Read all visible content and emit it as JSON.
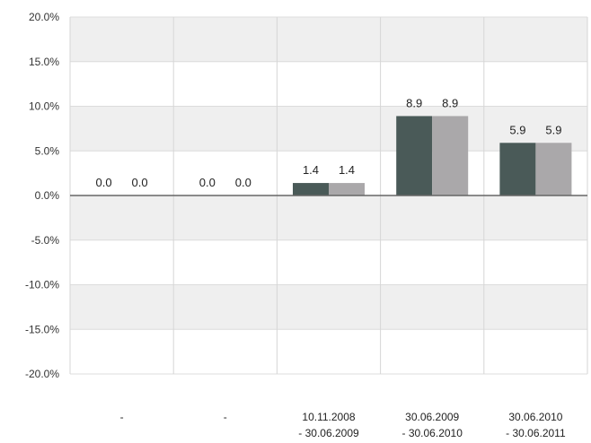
{
  "chart_data": {
    "type": "bar",
    "categories": [
      [
        "-"
      ],
      [
        "-"
      ],
      [
        "10.11.2008",
        "- 30.06.2009"
      ],
      [
        "30.06.2009",
        "- 30.06.2010"
      ],
      [
        "30.06.2010",
        "- 30.06.2011"
      ]
    ],
    "series": [
      {
        "values": [
          0.0,
          0.0,
          1.4,
          8.9,
          5.9
        ],
        "color": "#4a5a58"
      },
      {
        "values": [
          0.0,
          0.0,
          1.4,
          8.9,
          5.9
        ],
        "color": "#aaa8aa"
      }
    ],
    "data_labels": [
      [
        "0.0",
        "0.0",
        "1.4",
        "8.9",
        "5.9"
      ],
      [
        "0.0",
        "0.0",
        "1.4",
        "8.9",
        "5.9"
      ]
    ],
    "y_ticks": [
      "20.0%",
      "15.0%",
      "10.0%",
      "5.0%",
      "0.0%",
      "-5.0%",
      "-10.0%",
      "-15.0%",
      "-20.0%"
    ],
    "y_tick_values": [
      20,
      15,
      10,
      5,
      0,
      -5,
      -10,
      -15,
      -20
    ],
    "ylim": [
      -20,
      20
    ],
    "grid": true,
    "title": "",
    "xlabel": "",
    "ylabel": ""
  }
}
